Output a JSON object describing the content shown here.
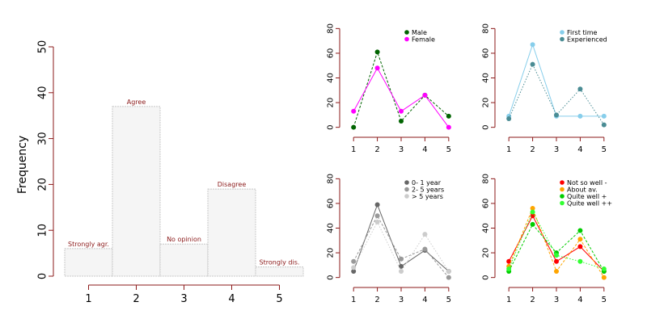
{
  "chart_data": [
    {
      "id": "histogram",
      "type": "bar",
      "ylabel": "Frequency",
      "ylim": [
        0,
        50
      ],
      "yticks": [
        0,
        10,
        20,
        30,
        40,
        50
      ],
      "xticks": [
        1,
        2,
        3,
        4,
        5
      ],
      "categories": [
        "1",
        "2",
        "3",
        "4",
        "5"
      ],
      "values": [
        6,
        37,
        7,
        19,
        2
      ],
      "bar_labels": [
        "Strongly agr.",
        "Agree",
        "No opinion",
        "Disagree",
        "Strongly dis."
      ],
      "colors": {
        "axis": "#8b1a1a",
        "bar_fill": "#f5f5f5",
        "bar_border": "#c8c8c8",
        "label": "#8b1a1a"
      }
    },
    {
      "id": "gender",
      "type": "line",
      "x": [
        1,
        2,
        3,
        4,
        5
      ],
      "ylim": [
        0,
        80
      ],
      "yticks": [
        0,
        20,
        40,
        60,
        80
      ],
      "legend": "top-right",
      "series": [
        {
          "name": "Male",
          "values": [
            0,
            61,
            5,
            26,
            9
          ],
          "color": "#006400",
          "dash": "dashed"
        },
        {
          "name": "Female",
          "values": [
            13,
            48,
            13,
            26,
            0
          ],
          "color": "#ff00ff",
          "dash": "solid"
        }
      ]
    },
    {
      "id": "experience",
      "type": "line",
      "x": [
        1,
        2,
        3,
        4,
        5
      ],
      "ylim": [
        0,
        80
      ],
      "yticks": [
        0,
        20,
        40,
        60,
        80
      ],
      "legend": "top-right",
      "series": [
        {
          "name": "First time",
          "values": [
            9,
            67,
            9,
            9,
            9
          ],
          "color": "#87ceeb",
          "dash": "solid"
        },
        {
          "name": "Experienced",
          "values": [
            7,
            51,
            10,
            31,
            2
          ],
          "color": "#4a8c94",
          "dash": "dotted"
        }
      ]
    },
    {
      "id": "tenure",
      "type": "line",
      "x": [
        1,
        2,
        3,
        4,
        5
      ],
      "ylim": [
        0,
        80
      ],
      "yticks": [
        0,
        20,
        40,
        60,
        80
      ],
      "legend": "top-right",
      "series": [
        {
          "name": "0- 1 year",
          "values": [
            5,
            59,
            9,
            22,
            5
          ],
          "color": "#666666",
          "dash": "solid"
        },
        {
          "name": "2- 5 years",
          "values": [
            13,
            50,
            15,
            23,
            0
          ],
          "color": "#999999",
          "dash": "dashed"
        },
        {
          "name": "> 5 years",
          "values": [
            8,
            45,
            5,
            35,
            5
          ],
          "color": "#cccccc",
          "dash": "dotted"
        }
      ]
    },
    {
      "id": "wellbeing",
      "type": "line",
      "x": [
        1,
        2,
        3,
        4,
        5
      ],
      "ylim": [
        0,
        80
      ],
      "yticks": [
        0,
        20,
        40,
        60,
        80
      ],
      "legend": "top-right",
      "series": [
        {
          "name": "Not so well -",
          "values": [
            13,
            50,
            13,
            25,
            5
          ],
          "color": "#ff0000",
          "dash": "solid"
        },
        {
          "name": "About av.",
          "values": [
            9,
            56,
            5,
            31,
            0
          ],
          "color": "#ffa500",
          "dash": "dashed"
        },
        {
          "name": "Quite well +",
          "values": [
            5,
            43,
            20,
            38,
            5
          ],
          "color": "#00cd00",
          "dash": "dashed"
        },
        {
          "name": "Quite well ++",
          "values": [
            7,
            53,
            18,
            13,
            7
          ],
          "color": "#32ff32",
          "dash": "dotted"
        }
      ]
    }
  ]
}
